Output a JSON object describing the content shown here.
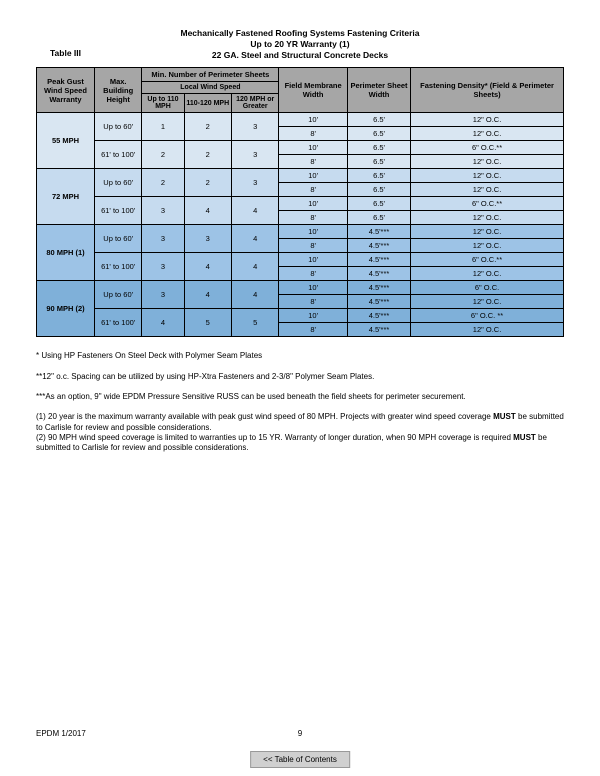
{
  "table_label": "Table III",
  "title_lines": [
    "Mechanically Fastened Roofing Systems Fastening Criteria",
    "Up to 20 YR Warranty (1)",
    "22 GA. Steel and Structural Concrete Decks"
  ],
  "headers": {
    "peak_gust": "Peak Gust Wind Speed Warranty",
    "max_height": "Max. Building Height",
    "min_perim": "Min. Number of Perimeter Sheets",
    "local_wind": "Local Wind Speed",
    "upto110": "Up to 110 MPH",
    "m110_120": "110-120 MPH",
    "m120plus": "120 MPH or Greater",
    "field_width": "Field Membrane Width",
    "perim_width": "Perimeter Sheet Width",
    "density": "Fastening Density* (Field & Perimeter Sheets)"
  },
  "colors": {
    "header_bg": "#a6a6a6",
    "g55": "#d9e6f2",
    "g72": "#c6dbef",
    "g80": "#9dc3e6",
    "g90": "#7fb0d9"
  },
  "groups": [
    {
      "wind": "55 MPH",
      "css": "g55",
      "heights": [
        {
          "h": "Up to 60'",
          "p": [
            "1",
            "2",
            "3"
          ],
          "rows": [
            [
              "10'",
              "6.5'",
              "12\" O.C."
            ],
            [
              "8'",
              "6.5'",
              "12\" O.C."
            ]
          ]
        },
        {
          "h": "61' to 100'",
          "p": [
            "2",
            "2",
            "3"
          ],
          "rows": [
            [
              "10'",
              "6.5'",
              "6\" O.C.**"
            ],
            [
              "8'",
              "6.5'",
              "12\" O.C."
            ]
          ]
        }
      ]
    },
    {
      "wind": "72 MPH",
      "css": "g72",
      "heights": [
        {
          "h": "Up to 60'",
          "p": [
            "2",
            "2",
            "3"
          ],
          "rows": [
            [
              "10'",
              "6.5'",
              "12\" O.C."
            ],
            [
              "8'",
              "6.5'",
              "12\" O.C."
            ]
          ]
        },
        {
          "h": "61' to 100'",
          "p": [
            "3",
            "4",
            "4"
          ],
          "rows": [
            [
              "10'",
              "6.5'",
              "6\" O.C.**"
            ],
            [
              "8'",
              "6.5'",
              "12\" O.C."
            ]
          ]
        }
      ]
    },
    {
      "wind": "80 MPH (1)",
      "css": "g80",
      "heights": [
        {
          "h": "Up to 60'",
          "p": [
            "3",
            "3",
            "4"
          ],
          "rows": [
            [
              "10'",
              "4.5'***",
              "12\" O.C."
            ],
            [
              "8'",
              "4.5'***",
              "12\" O.C."
            ]
          ]
        },
        {
          "h": "61' to 100'",
          "p": [
            "3",
            "4",
            "4"
          ],
          "rows": [
            [
              "10'",
              "4.5'***",
              "6\" O.C.**"
            ],
            [
              "8'",
              "4.5'***",
              "12\" O.C."
            ]
          ]
        }
      ]
    },
    {
      "wind": "90 MPH (2)",
      "css": "g90",
      "heights": [
        {
          "h": "Up to 60'",
          "p": [
            "3",
            "4",
            "4"
          ],
          "rows": [
            [
              "10'",
              "4.5'***",
              "6\" O.C."
            ],
            [
              "8'",
              "4.5'***",
              "12\" O.C."
            ]
          ]
        },
        {
          "h": "61' to 100'",
          "p": [
            "4",
            "5",
            "5"
          ],
          "rows": [
            [
              "10'",
              "4.5'***",
              "6\" O.C. **"
            ],
            [
              "8'",
              "4.5'***",
              "12\" O.C."
            ]
          ]
        }
      ]
    }
  ],
  "footnotes": [
    "* Using HP Fasteners On Steel Deck with Polymer Seam Plates",
    "**12\" o.c. Spacing can be utilized by using HP-Xtra Fasteners and 2-3/8\" Polymer Seam Plates.",
    "***As an option, 9\" wide EPDM Pressure Sensitive RUSS can be used beneath the field sheets for perimeter securement.",
    "(1)  20 year is the maximum warranty available with peak gust wind speed of 80 MPH.  Projects with greater wind speed coverage MUST be submitted to Carlisle for review and possible considerations.\n(2)  90 MPH wind speed coverage is limited to warranties up to 15 YR.  Warranty of longer duration, when 90 MPH coverage is required MUST be submitted to Carlisle for review and possible considerations."
  ],
  "doc_id": "EPDM 1/2017",
  "page_number": "9",
  "toc_label": "<< Table of Contents"
}
